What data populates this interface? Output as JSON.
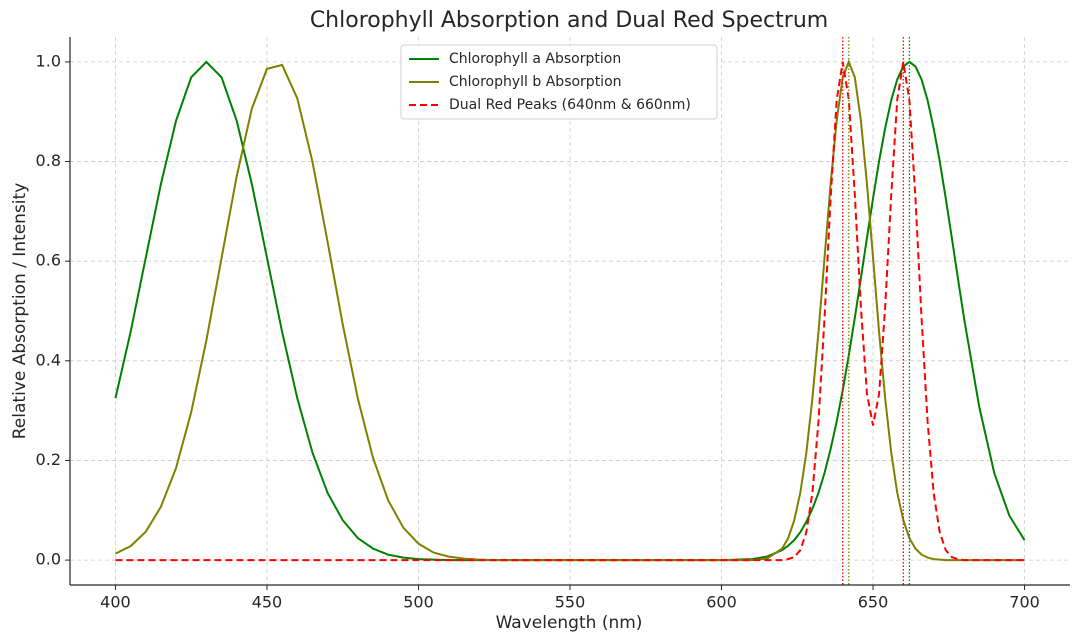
{
  "chart_data": {
    "type": "line",
    "title": "Chlorophyll Absorption and Dual Red Spectrum",
    "x_label": "Wavelength (nm)",
    "y_label": "Relative Absorption / Intensity",
    "x": [
      400,
      405,
      410,
      415,
      420,
      425,
      430,
      435,
      440,
      445,
      450,
      455,
      460,
      465,
      470,
      475,
      480,
      485,
      490,
      495,
      500,
      505,
      510,
      515,
      520,
      525,
      530,
      535,
      540,
      545,
      550,
      555,
      560,
      565,
      570,
      575,
      580,
      585,
      590,
      595,
      600,
      605,
      610,
      615,
      620,
      622,
      624,
      626,
      628,
      630,
      632,
      634,
      636,
      638,
      640,
      642,
      644,
      646,
      648,
      650,
      652,
      654,
      656,
      658,
      660,
      662,
      664,
      666,
      668,
      670,
      672,
      674,
      676,
      678,
      680,
      685,
      690,
      695,
      700
    ],
    "series": [
      {
        "name": "Chlorophyll a Absorption",
        "color": "#008000",
        "dashed": false,
        "values": [
          0.325,
          0.458,
          0.607,
          0.755,
          0.882,
          0.969,
          1,
          0.969,
          0.882,
          0.755,
          0.607,
          0.458,
          0.325,
          0.216,
          0.135,
          0.08,
          0.044,
          0.023,
          0.011,
          0.005,
          0.002,
          0.001,
          0,
          0,
          0,
          0,
          0,
          0,
          0,
          0,
          0,
          0,
          0,
          0,
          0,
          0,
          0,
          0,
          0,
          0,
          0,
          0.001,
          0.002,
          0.007,
          0.02,
          0.029,
          0.04,
          0.056,
          0.077,
          0.103,
          0.135,
          0.175,
          0.223,
          0.278,
          0.341,
          0.411,
          0.487,
          0.566,
          0.647,
          0.726,
          0.801,
          0.867,
          0.923,
          0.965,
          0.991,
          1,
          0.991,
          0.965,
          0.923,
          0.867,
          0.801,
          0.726,
          0.647,
          0.566,
          0.487,
          0.309,
          0.175,
          0.089,
          0.04
        ]
      },
      {
        "name": "Chlorophyll b Absorption",
        "color": "#808000",
        "dashed": false,
        "values": [
          0.013,
          0.028,
          0.057,
          0.107,
          0.185,
          0.297,
          0.441,
          0.606,
          0.77,
          0.906,
          0.986,
          0.994,
          0.927,
          0.8,
          0.639,
          0.473,
          0.324,
          0.205,
          0.12,
          0.065,
          0.033,
          0.015,
          0.007,
          0.003,
          0.001,
          0,
          0,
          0,
          0,
          0,
          0,
          0,
          0,
          0,
          0,
          0,
          0,
          0,
          0,
          0,
          0,
          0,
          0,
          0.003,
          0.023,
          0.044,
          0.08,
          0.135,
          0.216,
          0.325,
          0.458,
          0.607,
          0.755,
          0.882,
          0.969,
          1,
          0.969,
          0.882,
          0.755,
          0.607,
          0.458,
          0.325,
          0.216,
          0.135,
          0.08,
          0.044,
          0.023,
          0.011,
          0.005,
          0.002,
          0.001,
          0,
          0,
          0,
          0,
          0,
          0,
          0,
          0
        ]
      },
      {
        "name": "Dual Red Peaks (640nm & 660nm)",
        "color": "#ff0000",
        "dashed": true,
        "values": [
          0,
          0,
          0,
          0,
          0,
          0,
          0,
          0,
          0,
          0,
          0,
          0,
          0,
          0,
          0,
          0,
          0,
          0,
          0,
          0,
          0,
          0,
          0,
          0,
          0,
          0,
          0,
          0,
          0,
          0,
          0,
          0,
          0,
          0,
          0,
          0,
          0,
          0,
          0,
          0,
          0,
          0,
          0,
          0,
          0,
          0.002,
          0.006,
          0.02,
          0.056,
          0.135,
          0.278,
          0.487,
          0.726,
          0.923,
          1,
          0.925,
          0.732,
          0.507,
          0.334,
          0.27,
          0.334,
          0.507,
          0.732,
          0.925,
          1,
          0.923,
          0.726,
          0.487,
          0.278,
          0.135,
          0.056,
          0.02,
          0.006,
          0.002,
          0,
          0,
          0,
          0,
          0
        ]
      }
    ],
    "vlines": [
      {
        "x": 640,
        "color": "#ff0000"
      },
      {
        "x": 642,
        "color": "#808000"
      },
      {
        "x": 660,
        "color": "#ff0000"
      },
      {
        "x": 662,
        "color": "#008000"
      }
    ],
    "xlim": [
      385,
      715
    ],
    "ylim": [
      -0.05,
      1.05
    ],
    "xticks": [
      400,
      450,
      500,
      550,
      600,
      650,
      700
    ],
    "yticks": [
      {
        "value": 0,
        "label": "0.0"
      },
      {
        "value": 0.2,
        "label": "0.2"
      },
      {
        "value": 0.4,
        "label": "0.4"
      },
      {
        "value": 0.6,
        "label": "0.6"
      },
      {
        "value": 0.8,
        "label": "0.8"
      },
      {
        "value": 1,
        "label": "1.0"
      }
    ],
    "grid": true,
    "legend": "upper center"
  }
}
